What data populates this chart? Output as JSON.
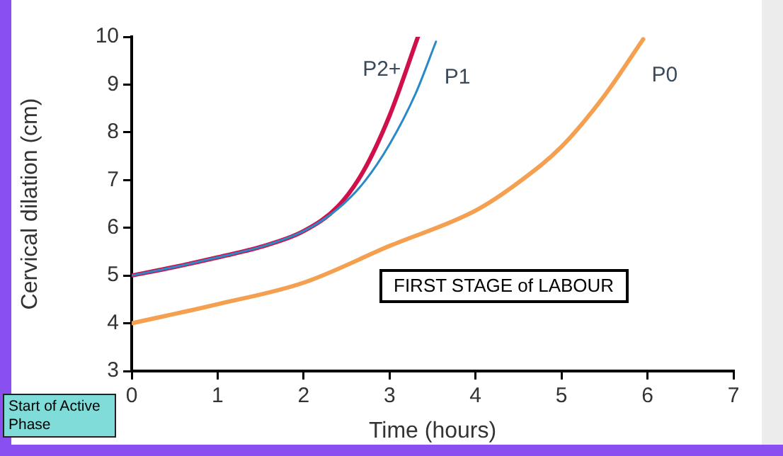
{
  "chart_data": {
    "type": "line",
    "xlabel": "Time (hours)",
    "ylabel": "Cervical dilation (cm)",
    "xlim": [
      0,
      7
    ],
    "xticks": [
      0,
      1,
      2,
      3,
      4,
      5,
      6,
      7
    ],
    "ylim": [
      3,
      10
    ],
    "yticks": [
      3,
      4,
      5,
      6,
      7,
      8,
      9,
      10
    ],
    "grid": false,
    "legend": false,
    "marker": "none",
    "line_style": "solid",
    "series": [
      {
        "name": "P2+",
        "color": "#d0104a",
        "x": [
          0,
          0.5,
          1,
          1.5,
          2,
          2.4,
          2.7,
          3,
          3.33
        ],
        "values": [
          5,
          5.18,
          5.38,
          5.6,
          5.93,
          6.45,
          7.2,
          8.35,
          10
        ]
      },
      {
        "name": "P1",
        "color": "#2a8ac8",
        "x": [
          0,
          0.5,
          1,
          1.5,
          2,
          2.4,
          2.7,
          3,
          3.3,
          3.54
        ],
        "values": [
          5,
          5.18,
          5.38,
          5.6,
          5.93,
          6.4,
          6.95,
          7.75,
          8.8,
          9.9
        ]
      },
      {
        "name": "P0",
        "color": "#f5a050",
        "x": [
          0,
          1,
          2,
          3,
          4,
          4.5,
          5,
          5.5,
          5.95
        ],
        "values": [
          4,
          4.4,
          4.85,
          5.62,
          6.36,
          6.95,
          7.7,
          8.77,
          9.95
        ]
      }
    ],
    "annotations": [
      "FIRST STAGE of LABOUR",
      "Start of Active Phase"
    ]
  }
}
